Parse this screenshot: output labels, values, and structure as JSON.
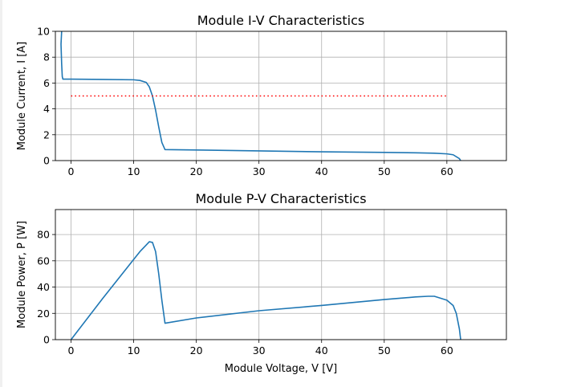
{
  "chart_data": [
    {
      "type": "line",
      "title": "Module I-V Characteristics",
      "xlabel": "",
      "ylabel": "Module Current, I [A]",
      "xlim": [
        -2.5,
        69.5
      ],
      "ylim": [
        0,
        10
      ],
      "xticks": [
        0,
        10,
        20,
        30,
        40,
        50,
        60
      ],
      "yticks": [
        0,
        2,
        4,
        6,
        8,
        10
      ],
      "grid": true,
      "series": [
        {
          "color": "#1f77b4",
          "style": "solid",
          "x": [
            -1.5,
            -1.6,
            -1.5,
            -1.4,
            -1.3,
            0,
            5,
            10,
            11,
            12,
            12.5,
            13,
            13.5,
            14,
            14.5,
            15,
            20,
            30,
            40,
            50,
            55,
            58,
            60,
            61,
            62,
            62.2
          ],
          "y": [
            10,
            9,
            7.5,
            6.5,
            6.3,
            6.3,
            6.28,
            6.25,
            6.2,
            6.05,
            5.7,
            5.0,
            3.9,
            2.6,
            1.4,
            0.85,
            0.82,
            0.75,
            0.68,
            0.63,
            0.6,
            0.57,
            0.52,
            0.45,
            0.15,
            0
          ]
        },
        {
          "color": "#ff0000",
          "style": "dotted",
          "x": [
            0,
            60
          ],
          "y": [
            5,
            5
          ]
        }
      ]
    },
    {
      "type": "line",
      "title": "Module P-V Characteristics",
      "xlabel": "Module Voltage, V [V]",
      "ylabel": "Module Power, P [W]",
      "xlim": [
        -2.5,
        69.5
      ],
      "ylim": [
        0,
        99
      ],
      "xticks": [
        0,
        10,
        20,
        30,
        40,
        50,
        60
      ],
      "yticks": [
        0,
        20,
        40,
        60,
        80
      ],
      "grid": true,
      "series": [
        {
          "color": "#1f77b4",
          "style": "solid",
          "x": [
            0,
            5,
            10,
            11,
            12,
            12.5,
            13,
            13.5,
            14,
            14.5,
            15,
            20,
            30,
            40,
            50,
            55,
            57,
            58,
            60,
            61,
            61.5,
            62,
            62.2
          ],
          "y": [
            0,
            31,
            61,
            67,
            72,
            74.5,
            74,
            67,
            50,
            30,
            12.5,
            16.5,
            22,
            26,
            30.5,
            32.5,
            33,
            33,
            30,
            26,
            20,
            8,
            0
          ]
        }
      ]
    }
  ]
}
